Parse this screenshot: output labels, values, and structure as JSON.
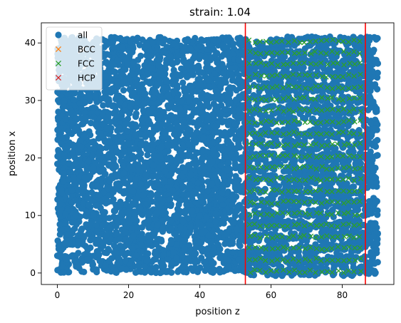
{
  "chart_data": {
    "type": "scatter",
    "title": "strain: 1.04",
    "xlabel": "position z",
    "ylabel": "position x",
    "xlim": [
      -4.5,
      94.5
    ],
    "ylim": [
      -2,
      43.5
    ],
    "xticks": [
      0,
      20,
      40,
      60,
      80
    ],
    "yticks": [
      0,
      10,
      20,
      30,
      40
    ],
    "grid": false,
    "legend": {
      "placement": "top-left",
      "entries": [
        {
          "label": "all",
          "marker": "circle",
          "color": "#1f77b4"
        },
        {
          "label": "BCC",
          "marker": "x",
          "color": "#ff7f0e"
        },
        {
          "label": "FCC",
          "marker": "x",
          "color": "#2ca02c"
        },
        {
          "label": "HCP",
          "marker": "x",
          "color": "#d62728"
        }
      ]
    },
    "series": [
      {
        "name": "all",
        "marker": "circle",
        "color": "#1f77b4",
        "description_region": {
          "x_range": [
            0,
            90
          ],
          "y_range": [
            0,
            41
          ]
        }
      },
      {
        "name": "FCC",
        "marker": "x",
        "color": "#2ca02c",
        "region": {
          "x_range": [
            54,
            85
          ],
          "y_range": [
            0,
            41
          ]
        },
        "layer_y": [
          0.3,
          2.3,
          4.3,
          6.3,
          8.3,
          10.3,
          12.3,
          14.3,
          16.3,
          18.3,
          20.3,
          22.3,
          24.3,
          26.3,
          28.3,
          30.3,
          32.3,
          34.3,
          36.3,
          38.3,
          40.3
        ]
      }
    ],
    "vlines": [
      {
        "x": 52.8,
        "color": "#ff0000"
      },
      {
        "x": 86.5,
        "color": "#ff0000"
      }
    ]
  }
}
